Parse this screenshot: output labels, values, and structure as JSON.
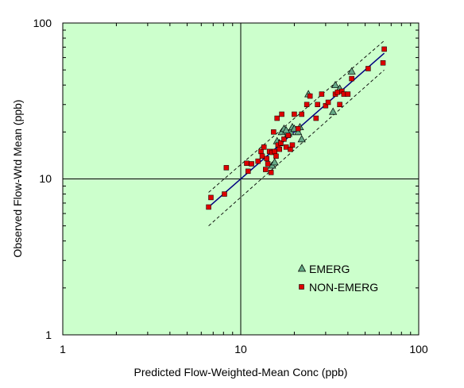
{
  "chart_data": {
    "type": "scatter",
    "xscale": "log",
    "yscale": "log",
    "xlim": [
      1,
      100
    ],
    "ylim": [
      1,
      100
    ],
    "xlabel": "Predicted Flow-Weighted-Mean Conc (ppb)",
    "ylabel": "Observed  Flow-Wtd Mean (ppb)",
    "x_ticks": [
      "1",
      "10",
      "100"
    ],
    "y_ticks": [
      "1",
      "10",
      "100"
    ],
    "reference_lines": {
      "x": 10,
      "y": 10
    },
    "grid": false,
    "legend_position": "lower-right",
    "colors": {
      "plot_background": "#ccffcc",
      "fit_line": "#000080",
      "emerg": "#66aa88",
      "non_emerg": "#dd0000"
    },
    "fit": {
      "x": [
        6.6,
        64
      ],
      "y": [
        6.6,
        64
      ]
    },
    "band_upper": {
      "x": [
        6.6,
        64
      ],
      "y": [
        8.2,
        77
      ]
    },
    "band_lower": {
      "x": [
        6.6,
        64
      ],
      "y": [
        5.0,
        50
      ]
    },
    "series": [
      {
        "name": "EMERG",
        "marker": "triangle",
        "x": [
          15.0,
          15.5,
          16.5,
          17.0,
          17.5,
          18.5,
          19.0,
          19.5,
          20.0,
          21.0,
          21.5,
          22.0,
          24.0,
          33.0,
          34.0,
          36.0,
          42.0,
          16.0,
          18.0
        ],
        "y": [
          12.2,
          12.8,
          17.0,
          20.0,
          21.0,
          19.5,
          20.0,
          21.5,
          21.0,
          20.0,
          21.5,
          18.0,
          35.0,
          27.0,
          40.0,
          38.0,
          49.0,
          17.5,
          20.5
        ]
      },
      {
        "name": "NON-EMERG",
        "marker": "square",
        "x": [
          6.6,
          6.8,
          8.1,
          8.3,
          10.8,
          11.0,
          11.5,
          12.5,
          13.0,
          13.2,
          13.5,
          13.8,
          14.0,
          14.2,
          14.5,
          14.8,
          15.0,
          15.3,
          15.5,
          15.8,
          16.0,
          16.2,
          16.5,
          16.8,
          17.0,
          17.5,
          18.0,
          18.5,
          19.0,
          19.5,
          20.0,
          21.0,
          22.0,
          23.5,
          24.5,
          26.5,
          27.0,
          28.5,
          30.0,
          31.0,
          34.0,
          35.0,
          36.0,
          37.0,
          38.0,
          40.0,
          42.0,
          52.0,
          63.0,
          64.0
        ],
        "y": [
          6.6,
          7.6,
          8.0,
          11.8,
          12.6,
          11.2,
          12.5,
          13.0,
          15.0,
          14.0,
          16.0,
          11.5,
          13.5,
          12.5,
          15.0,
          11.0,
          14.8,
          20.0,
          15.0,
          14.0,
          24.5,
          16.5,
          15.5,
          17.0,
          26.0,
          18.0,
          16.0,
          19.0,
          15.5,
          16.5,
          26.0,
          21.0,
          26.0,
          30.0,
          34.0,
          24.5,
          30.0,
          35.0,
          29.5,
          31.0,
          35.0,
          36.0,
          30.0,
          36.5,
          35.0,
          35.0,
          44.0,
          51.0,
          55.5,
          68.0
        ]
      }
    ]
  }
}
